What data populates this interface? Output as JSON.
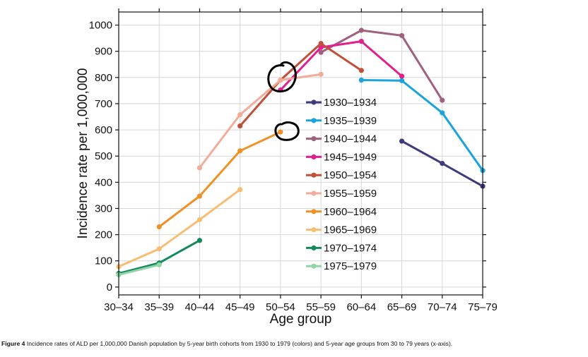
{
  "chart_data": {
    "type": "line",
    "categories": [
      "30–34",
      "35–39",
      "40–44",
      "45–49",
      "50–54",
      "55–59",
      "60–64",
      "65–69",
      "70–74",
      "75–79"
    ],
    "xlabel": "Age group",
    "ylabel": "Incidence rate per 1,000,000",
    "ylim": [
      -30,
      1050
    ],
    "yticks": [
      0,
      100,
      200,
      300,
      400,
      500,
      600,
      700,
      800,
      900,
      1000
    ],
    "grid": true,
    "legend_position": "center",
    "series": [
      {
        "name": "1930–1934",
        "color": "#3d3b7e",
        "values": [
          null,
          null,
          null,
          null,
          null,
          null,
          null,
          557,
          472,
          385
        ]
      },
      {
        "name": "1935–1939",
        "color": "#1aa3dc",
        "values": [
          null,
          null,
          null,
          null,
          null,
          null,
          790,
          788,
          665,
          445
        ]
      },
      {
        "name": "1940–1944",
        "color": "#a0607f",
        "values": [
          null,
          null,
          null,
          null,
          null,
          896,
          980,
          960,
          713,
          null
        ]
      },
      {
        "name": "1945–1949",
        "color": "#e0208e",
        "values": [
          null,
          null,
          null,
          null,
          752,
          915,
          938,
          805,
          null,
          null
        ]
      },
      {
        "name": "1950–1954",
        "color": "#c24f3a",
        "values": [
          null,
          null,
          null,
          615,
          790,
          930,
          827,
          null,
          null,
          null
        ]
      },
      {
        "name": "1955–1959",
        "color": "#f3ab9a",
        "values": [
          null,
          null,
          455,
          658,
          790,
          812,
          null,
          null,
          null,
          null
        ]
      },
      {
        "name": "1960–1964",
        "color": "#ee9126",
        "values": [
          null,
          230,
          347,
          520,
          592,
          null,
          null,
          null,
          null,
          null
        ]
      },
      {
        "name": "1965–1969",
        "color": "#f7bd72",
        "values": [
          78,
          146,
          257,
          372,
          null,
          null,
          null,
          null,
          null,
          null
        ]
      },
      {
        "name": "1970–1974",
        "color": "#138a5a",
        "values": [
          52,
          92,
          178,
          null,
          null,
          null,
          null,
          null,
          null,
          null
        ]
      },
      {
        "name": "1975–1979",
        "color": "#8fd5a8",
        "values": [
          47,
          85,
          null,
          null,
          null,
          null,
          null,
          null,
          null,
          null
        ]
      }
    ]
  },
  "caption": {
    "lead": "Figure 4",
    "text": " Incidence rates of ALD per 1,000,000 Danish population by 5-year birth cohorts from 1930 to 1979 (colors) and 5-year age groups from 30 to 79 years (x-axis)."
  }
}
